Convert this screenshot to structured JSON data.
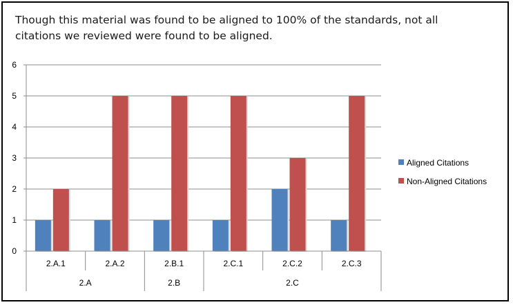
{
  "caption": "Though this material was found to be aligned to 100% of the standards, not all citations we reviewed were found to be aligned.",
  "chart_data": {
    "type": "bar",
    "categories": [
      "2.A.1",
      "2.A.2",
      "2.B.1",
      "2.C.1",
      "2.C.2",
      "2.C.3"
    ],
    "groups": [
      {
        "label": "2.A",
        "categories": [
          "2.A.1",
          "2.A.2"
        ]
      },
      {
        "label": "2.B",
        "categories": [
          "2.B.1"
        ]
      },
      {
        "label": "2.C",
        "categories": [
          "2.C.1",
          "2.C.2",
          "2.C.3"
        ]
      }
    ],
    "series": [
      {
        "name": "Aligned Citations",
        "color": "#4f81bd",
        "values": [
          1,
          1,
          1,
          1,
          2,
          1
        ]
      },
      {
        "name": "Non-Aligned Citations",
        "color": "#c0504d",
        "values": [
          2,
          5,
          5,
          5,
          3,
          5
        ]
      }
    ],
    "ylim": [
      0,
      6
    ],
    "yticks": [
      0,
      1,
      2,
      3,
      4,
      5,
      6
    ],
    "grid": true,
    "legend": "right"
  }
}
